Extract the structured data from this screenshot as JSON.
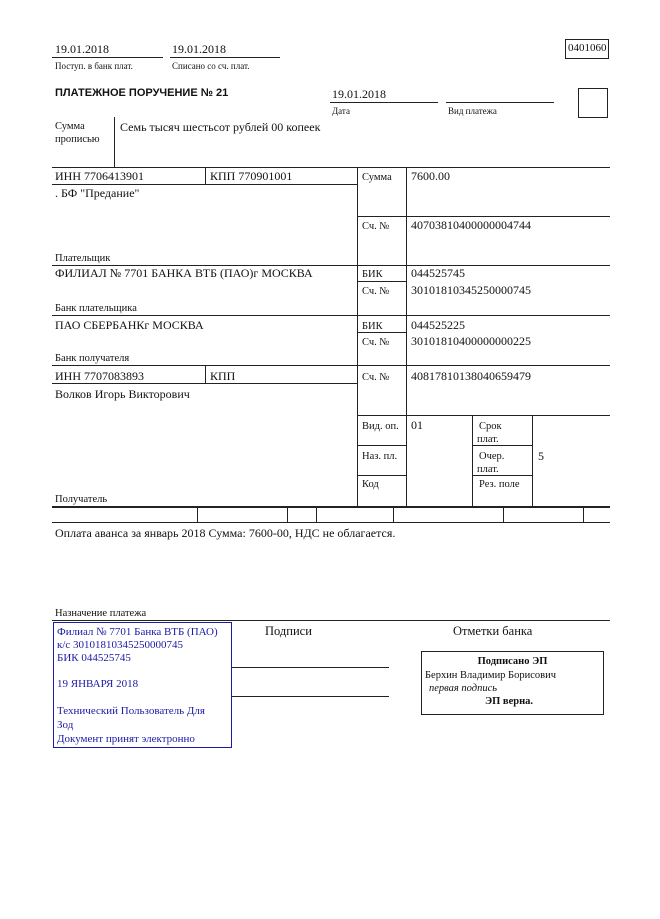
{
  "header": {
    "received_date": "19.01.2018",
    "received_label": "Поступ. в банк плат.",
    "debited_date": "19.01.2018",
    "debited_label": "Списано со сч. плат.",
    "form_code": "0401060",
    "title": "ПЛАТЕЖНОЕ ПОРУЧЕНИЕ № 21",
    "date": "19.01.2018",
    "date_label": "Дата",
    "payment_type_label": "Вид платежа"
  },
  "amount_words": {
    "label_1": "Сумма",
    "label_2": "прописью",
    "value": "Семь тысяч шестьсот рублей 00 копеек"
  },
  "payer": {
    "inn": "ИНН 7706413901",
    "kpp": "КПП 770901001",
    "name": ". БФ \"Предание\"",
    "label": "Плательщик",
    "sum_label": "Сумма",
    "sum": "7600.00",
    "account_label": "Сч. №",
    "account": "40703810400000004744"
  },
  "payer_bank": {
    "name": "ФИЛИАЛ № 7701 БАНКА ВТБ (ПАО)г МОСКВА",
    "label": "Банк плательщика",
    "bik_label": "БИК",
    "bik": "044525745",
    "account_label": "Сч. №",
    "account": "30101810345250000745"
  },
  "payee_bank": {
    "name": "ПАО СБЕРБАНКг МОСКВА",
    "label": "Банк получателя",
    "bik_label": "БИК",
    "bik": "044525225",
    "account_label": "Сч. №",
    "account": "30101810400000000225"
  },
  "payee": {
    "inn": "ИНН 7707083893",
    "kpp": "КПП",
    "name": "Волков Игорь Викторович",
    "label": "Получатель",
    "account_label": "Сч. №",
    "account": "40817810138040659479"
  },
  "codes": {
    "op_type_label": "Вид. оп.",
    "op_type": "01",
    "purpose_code_label": "Наз. пл.",
    "code_label": "Код",
    "term_label_1": "Срок",
    "term_label_2": "плат.",
    "priority_label_1": "Очер.",
    "priority_label_2": "плат.",
    "priority": "5",
    "reserve_label": "Рез. поле"
  },
  "purpose": {
    "text": "Оплата аванса за январь 2018 Сумма: 7600-00, НДС не облагается.",
    "label": "Назначение платежа"
  },
  "signatures_label": "Подписи",
  "bank_marks_label": "Отметки банка",
  "bank_stamp": {
    "lines": [
      "Филиал № 7701 Банка ВТБ (ПАО)",
      "к/с 30101810345250000745",
      "БИК 044525745",
      "19 ЯНВАРЯ 2018",
      "Технический Пользователь Для",
      "Зод",
      "Документ принят электронно"
    ],
    "color": "#1a1aa6"
  },
  "esign": {
    "title": "Подписано ЭП",
    "signer": "Берхин Владимир Борисович",
    "role": "первая подпись",
    "status": "ЭП верна."
  }
}
